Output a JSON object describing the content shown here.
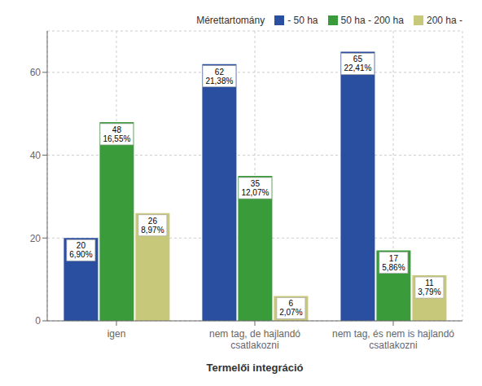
{
  "chart_data": {
    "type": "bar",
    "xlabel": "Termelői integráció",
    "legend_title": "Mérettartomány",
    "categories": [
      "igen",
      "nem tag, de hajlandó\ncsatlakozni",
      "nem tag, és nem is hajlandó\ncsatlakozni"
    ],
    "series": [
      {
        "name": "- 50 ha",
        "color": "#2B4FA0",
        "values": [
          20,
          62,
          65
        ],
        "value_labels": [
          "20\n6,90%",
          "62\n21,38%",
          "65\n22,41%"
        ]
      },
      {
        "name": "50 ha - 200 ha",
        "color": "#3A9B3A",
        "values": [
          48,
          35,
          17
        ],
        "value_labels": [
          "48\n16,55%",
          "35\n12,07%",
          "17\n5,86%"
        ]
      },
      {
        "name": "200 ha -",
        "color": "#C8C87A",
        "values": [
          26,
          6,
          11
        ],
        "value_labels": [
          "26\n8,97%",
          "6\n2,07%",
          "11\n3,79%"
        ]
      }
    ],
    "ylim": [
      0,
      70
    ],
    "yticks": [
      0,
      20,
      40,
      60
    ],
    "grid": true,
    "legend": "upper right",
    "data_labels": true
  }
}
